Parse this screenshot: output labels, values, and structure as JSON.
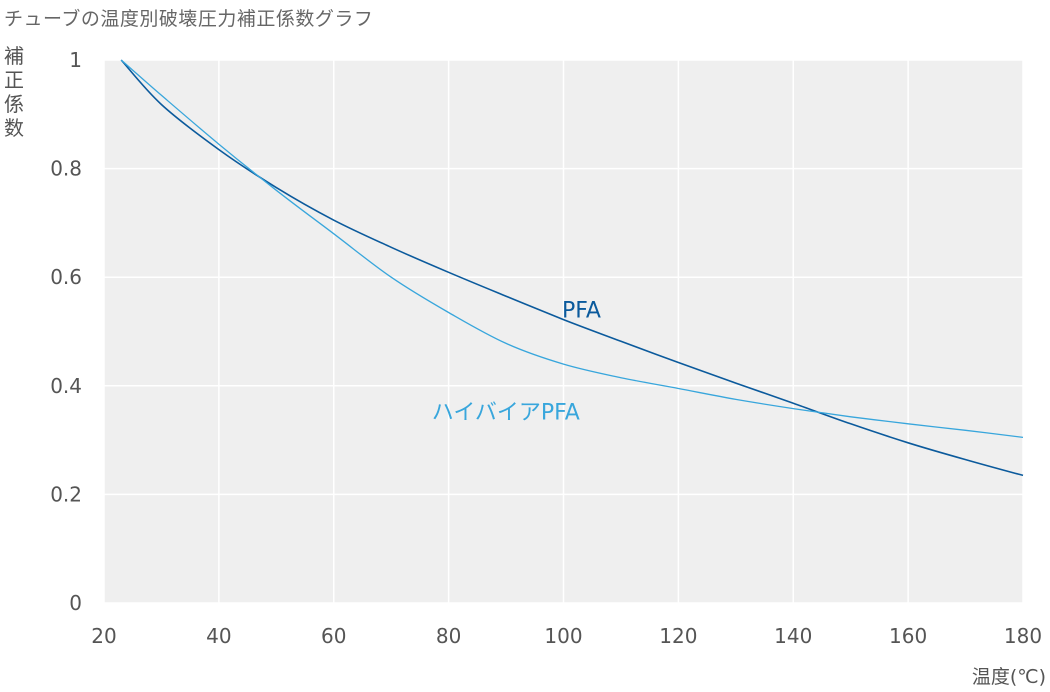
{
  "chart_data": {
    "type": "line",
    "title": "チューブの温度別破壊圧力補正係数グラフ",
    "ylabel": "補正係数",
    "xlabel": "温度(℃)",
    "xlim": [
      20,
      180
    ],
    "ylim": [
      0,
      1
    ],
    "x_ticks": [
      20,
      40,
      60,
      80,
      100,
      120,
      140,
      160,
      180
    ],
    "y_ticks": [
      0,
      0.2,
      0.4,
      0.6,
      0.8,
      1
    ],
    "y_tick_labels": [
      "0",
      "0.2",
      "0.4",
      "0.6",
      "0.8",
      "1"
    ],
    "grid": true,
    "series": [
      {
        "name": "PFA",
        "color": "#0b5a9c",
        "x": [
          23,
          30,
          40,
          50,
          60,
          70,
          80,
          90,
          100,
          110,
          120,
          130,
          140,
          150,
          160,
          170,
          180
        ],
        "y": [
          1.0,
          0.918,
          0.835,
          0.765,
          0.705,
          0.655,
          0.609,
          0.565,
          0.522,
          0.482,
          0.443,
          0.405,
          0.368,
          0.33,
          0.295,
          0.264,
          0.235
        ]
      },
      {
        "name": "ハイバイアPFA",
        "color": "#38a6dc",
        "x": [
          23,
          30,
          40,
          50,
          60,
          70,
          80,
          90,
          100,
          110,
          120,
          130,
          140,
          150,
          160,
          170,
          180
        ],
        "y": [
          1.0,
          0.935,
          0.845,
          0.76,
          0.68,
          0.6,
          0.535,
          0.478,
          0.44,
          0.415,
          0.395,
          0.375,
          0.358,
          0.343,
          0.33,
          0.318,
          0.305
        ]
      }
    ]
  }
}
